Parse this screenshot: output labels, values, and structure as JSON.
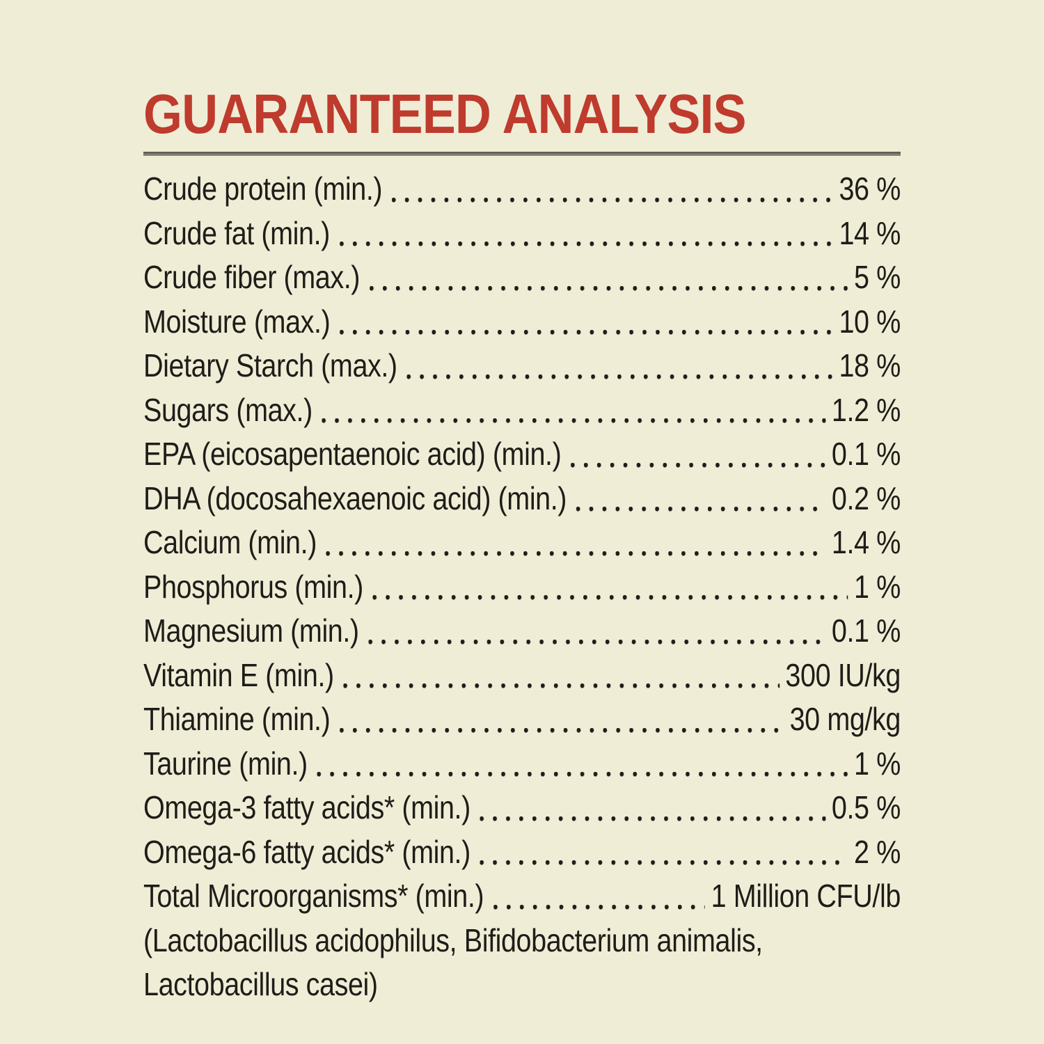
{
  "page": {
    "title": "GUARANTEED ANALYSIS",
    "background_color": "#F0EDD7",
    "title_color": "#BE3B2D",
    "text_color": "#1E1D18",
    "rule_color": "#6E6D62"
  },
  "analysis": {
    "rows": [
      {
        "label": "Crude protein (min.)",
        "value": "36 %"
      },
      {
        "label": "Crude fat (min.)",
        "value": "14 %"
      },
      {
        "label": "Crude fiber (max.)",
        "value": "5 %"
      },
      {
        "label": "Moisture (max.)",
        "value": "10 %"
      },
      {
        "label": "Dietary Starch (max.)",
        "value": "18 %"
      },
      {
        "label": "Sugars (max.)",
        "value": "1.2 %"
      },
      {
        "label": "EPA (eicosapentaenoic acid) (min.)",
        "value": "0.1 %"
      },
      {
        "label": "DHA (docosahexaenoic acid) (min.)",
        "value": "0.2 %"
      },
      {
        "label": "Calcium (min.)",
        "value": "1.4 %"
      },
      {
        "label": "Phosphorus (min.)",
        "value": "1 %"
      },
      {
        "label": "Magnesium (min.)",
        "value": "0.1 %"
      },
      {
        "label": "Vitamin E (min.)",
        "value": "300 IU/kg"
      },
      {
        "label": "Thiamine (min.)",
        "value": "30 mg/kg"
      },
      {
        "label": "Taurine (min.)",
        "value": "1 %"
      },
      {
        "label": "Omega-3 fatty acids* (min.)",
        "value": "0.5 %"
      },
      {
        "label": "Omega-6 fatty acids* (min.)",
        "value": "2 %"
      },
      {
        "label": "Total Microorganisms* (min.)",
        "value": "1 Million CFU/lb"
      }
    ],
    "footnote_lines": [
      "(Lactobacillus acidophilus, Bifidobacterium animalis,",
      "Lactobacillus casei)"
    ]
  }
}
